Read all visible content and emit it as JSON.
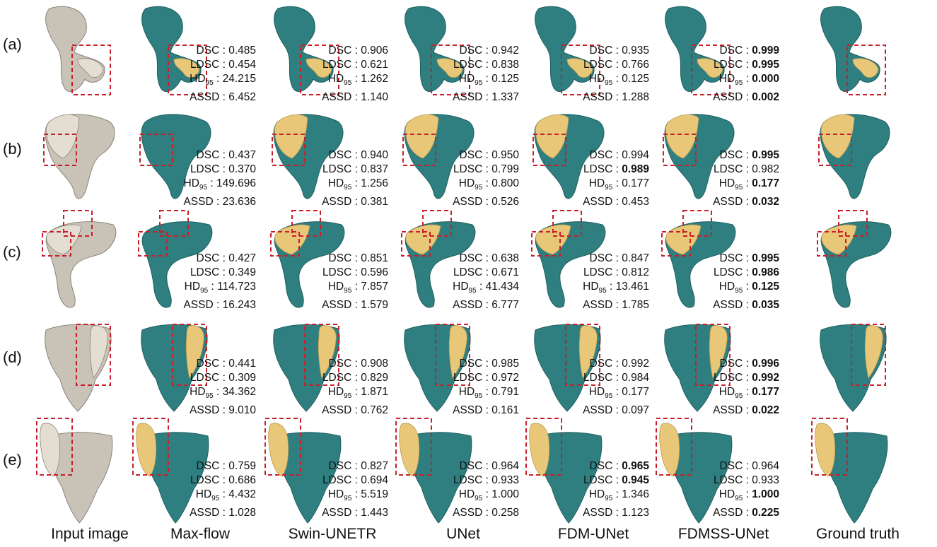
{
  "columns": [
    "Input image",
    "Max-flow",
    "Swin-UNETR",
    "UNet",
    "FDM-UNet",
    "FDMSS-UNet",
    "Ground truth"
  ],
  "colors": {
    "bone": "#2f7f80",
    "fracture": "#e8c878",
    "input_bone": "#c9c2b6",
    "box": "#c8202a"
  },
  "metric_labels": {
    "dsc": "DSC : ",
    "ldsc": "LDSC : ",
    "hd_prefix": "HD",
    "hd_sub": "95",
    "hd_suffix": " : ",
    "assd": "ASSD : "
  },
  "rows": [
    {
      "label": "(a)",
      "methods": [
        {
          "dsc": "0.485",
          "ldsc": "0.454",
          "hd95": "24.215",
          "assd": "6.452",
          "best": []
        },
        {
          "dsc": "0.906",
          "ldsc": "0.621",
          "hd95": "1.262",
          "assd": "1.140",
          "best": []
        },
        {
          "dsc": "0.942",
          "ldsc": "0.838",
          "hd95": "0.125",
          "assd": "1.337",
          "best": []
        },
        {
          "dsc": "0.935",
          "ldsc": "0.766",
          "hd95": "0.125",
          "assd": "1.288",
          "best": []
        },
        {
          "dsc": "0.999",
          "ldsc": "0.995",
          "hd95": "0.000",
          "assd": "0.002",
          "best": [
            "dsc",
            "ldsc",
            "hd95",
            "assd"
          ]
        }
      ]
    },
    {
      "label": "(b)",
      "methods": [
        {
          "dsc": "0.437",
          "ldsc": "0.370",
          "hd95": "149.696",
          "assd": "23.636",
          "best": []
        },
        {
          "dsc": "0.940",
          "ldsc": "0.837",
          "hd95": "1.256",
          "assd": "0.381",
          "best": []
        },
        {
          "dsc": "0.950",
          "ldsc": "0.799",
          "hd95": "0.800",
          "assd": "0.526",
          "best": []
        },
        {
          "dsc": "0.994",
          "ldsc": "0.989",
          "hd95": "0.177",
          "assd": "0.453",
          "best": [
            "ldsc"
          ]
        },
        {
          "dsc": "0.995",
          "ldsc": "0.982",
          "hd95": "0.177",
          "assd": "0.032",
          "best": [
            "dsc",
            "hd95",
            "assd"
          ]
        }
      ]
    },
    {
      "label": "(c)",
      "methods": [
        {
          "dsc": "0.427",
          "ldsc": "0.349",
          "hd95": "114.723",
          "assd": "16.243",
          "best": []
        },
        {
          "dsc": "0.851",
          "ldsc": "0.596",
          "hd95": "7.857",
          "assd": "1.579",
          "best": []
        },
        {
          "dsc": "0.638",
          "ldsc": "0.671",
          "hd95": "41.434",
          "assd": "6.777",
          "best": []
        },
        {
          "dsc": "0.847",
          "ldsc": "0.812",
          "hd95": "13.461",
          "assd": "1.785",
          "best": []
        },
        {
          "dsc": "0.995",
          "ldsc": "0.986",
          "hd95": "0.125",
          "assd": "0.035",
          "best": [
            "dsc",
            "ldsc",
            "hd95",
            "assd"
          ]
        }
      ]
    },
    {
      "label": "(d)",
      "methods": [
        {
          "dsc": "0.441",
          "ldsc": "0.309",
          "hd95": "34.362",
          "assd": "9.010",
          "best": []
        },
        {
          "dsc": "0.908",
          "ldsc": "0.829",
          "hd95": "1.871",
          "assd": "0.762",
          "best": []
        },
        {
          "dsc": "0.985",
          "ldsc": "0.972",
          "hd95": "0.791",
          "assd": "0.161",
          "best": []
        },
        {
          "dsc": "0.992",
          "ldsc": "0.984",
          "hd95": "0.177",
          "assd": "0.097",
          "best": []
        },
        {
          "dsc": "0.996",
          "ldsc": "0.992",
          "hd95": "0.177",
          "assd": "0.022",
          "best": [
            "dsc",
            "ldsc",
            "hd95",
            "assd"
          ]
        }
      ]
    },
    {
      "label": "(e)",
      "methods": [
        {
          "dsc": "0.759",
          "ldsc": "0.686",
          "hd95": "4.432",
          "assd": "1.028",
          "best": []
        },
        {
          "dsc": "0.827",
          "ldsc": "0.694",
          "hd95": "5.519",
          "assd": "1.443",
          "best": []
        },
        {
          "dsc": "0.964",
          "ldsc": "0.933",
          "hd95": "1.000",
          "assd": "0.258",
          "best": []
        },
        {
          "dsc": "0.965",
          "ldsc": "0.945",
          "hd95": "1.346",
          "assd": "1.123",
          "best": [
            "dsc",
            "ldsc"
          ]
        },
        {
          "dsc": "0.964",
          "ldsc": "0.933",
          "hd95": "1.000",
          "assd": "0.225",
          "best": [
            "hd95",
            "assd"
          ]
        }
      ]
    }
  ]
}
